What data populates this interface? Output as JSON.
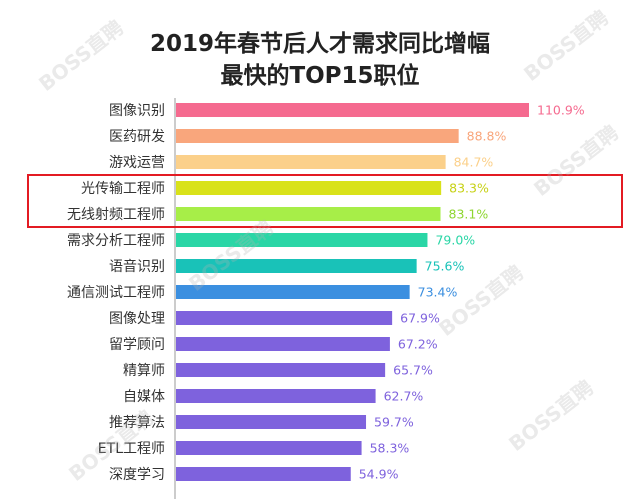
{
  "header": {
    "title_line1": "2019年春节后人才需求同比增幅",
    "title_line2": "最快的TOP15职位"
  },
  "watermark": "BOSS直聘",
  "colors": {
    "highlight_box": "#e31b23",
    "axis": "#9a9a9a",
    "label_text": "#333333"
  },
  "chart_data": {
    "type": "bar",
    "orientation": "horizontal",
    "categories": [
      "图像识别",
      "医药研发",
      "游戏运营",
      "光传输工程师",
      "无线射频工程师",
      "需求分析工程师",
      "语音识别",
      "通信测试工程师",
      "图像处理",
      "留学顾问",
      "精算师",
      "自媒体",
      "推荐算法",
      "ETL工程师",
      "深度学习"
    ],
    "values": [
      110.9,
      88.8,
      84.7,
      83.3,
      83.1,
      79.0,
      75.6,
      73.4,
      67.9,
      67.2,
      65.7,
      62.7,
      59.7,
      58.3,
      54.9
    ],
    "value_labels": [
      "110.9%",
      "88.8%",
      "84.7%",
      "83.3%",
      "83.1%",
      "79.0%",
      "75.6%",
      "73.4%",
      "67.9%",
      "67.2%",
      "65.7%",
      "62.7%",
      "59.7%",
      "58.3%",
      "54.9%"
    ],
    "bar_colors": [
      "#f56a8f",
      "#f9a67c",
      "#fbd08a",
      "#d9e21a",
      "#a7ee48",
      "#2ad6a6",
      "#19c2b8",
      "#3b8fe0",
      "#7e62dd",
      "#7e62dd",
      "#7e62dd",
      "#7e62dd",
      "#7e62dd",
      "#7e62dd",
      "#7e62dd"
    ],
    "label_colors": [
      "#f56a8f",
      "#f9a67c",
      "#fbd08a",
      "#c7d115",
      "#8fd630",
      "#2ad6a6",
      "#19c2b8",
      "#3b8fe0",
      "#7e62dd",
      "#7e62dd",
      "#7e62dd",
      "#7e62dd",
      "#7e62dd",
      "#7e62dd",
      "#7e62dd"
    ],
    "highlighted": [
      3,
      4
    ],
    "xlim": [
      0,
      110.9
    ],
    "grid": false,
    "legend": "none"
  }
}
